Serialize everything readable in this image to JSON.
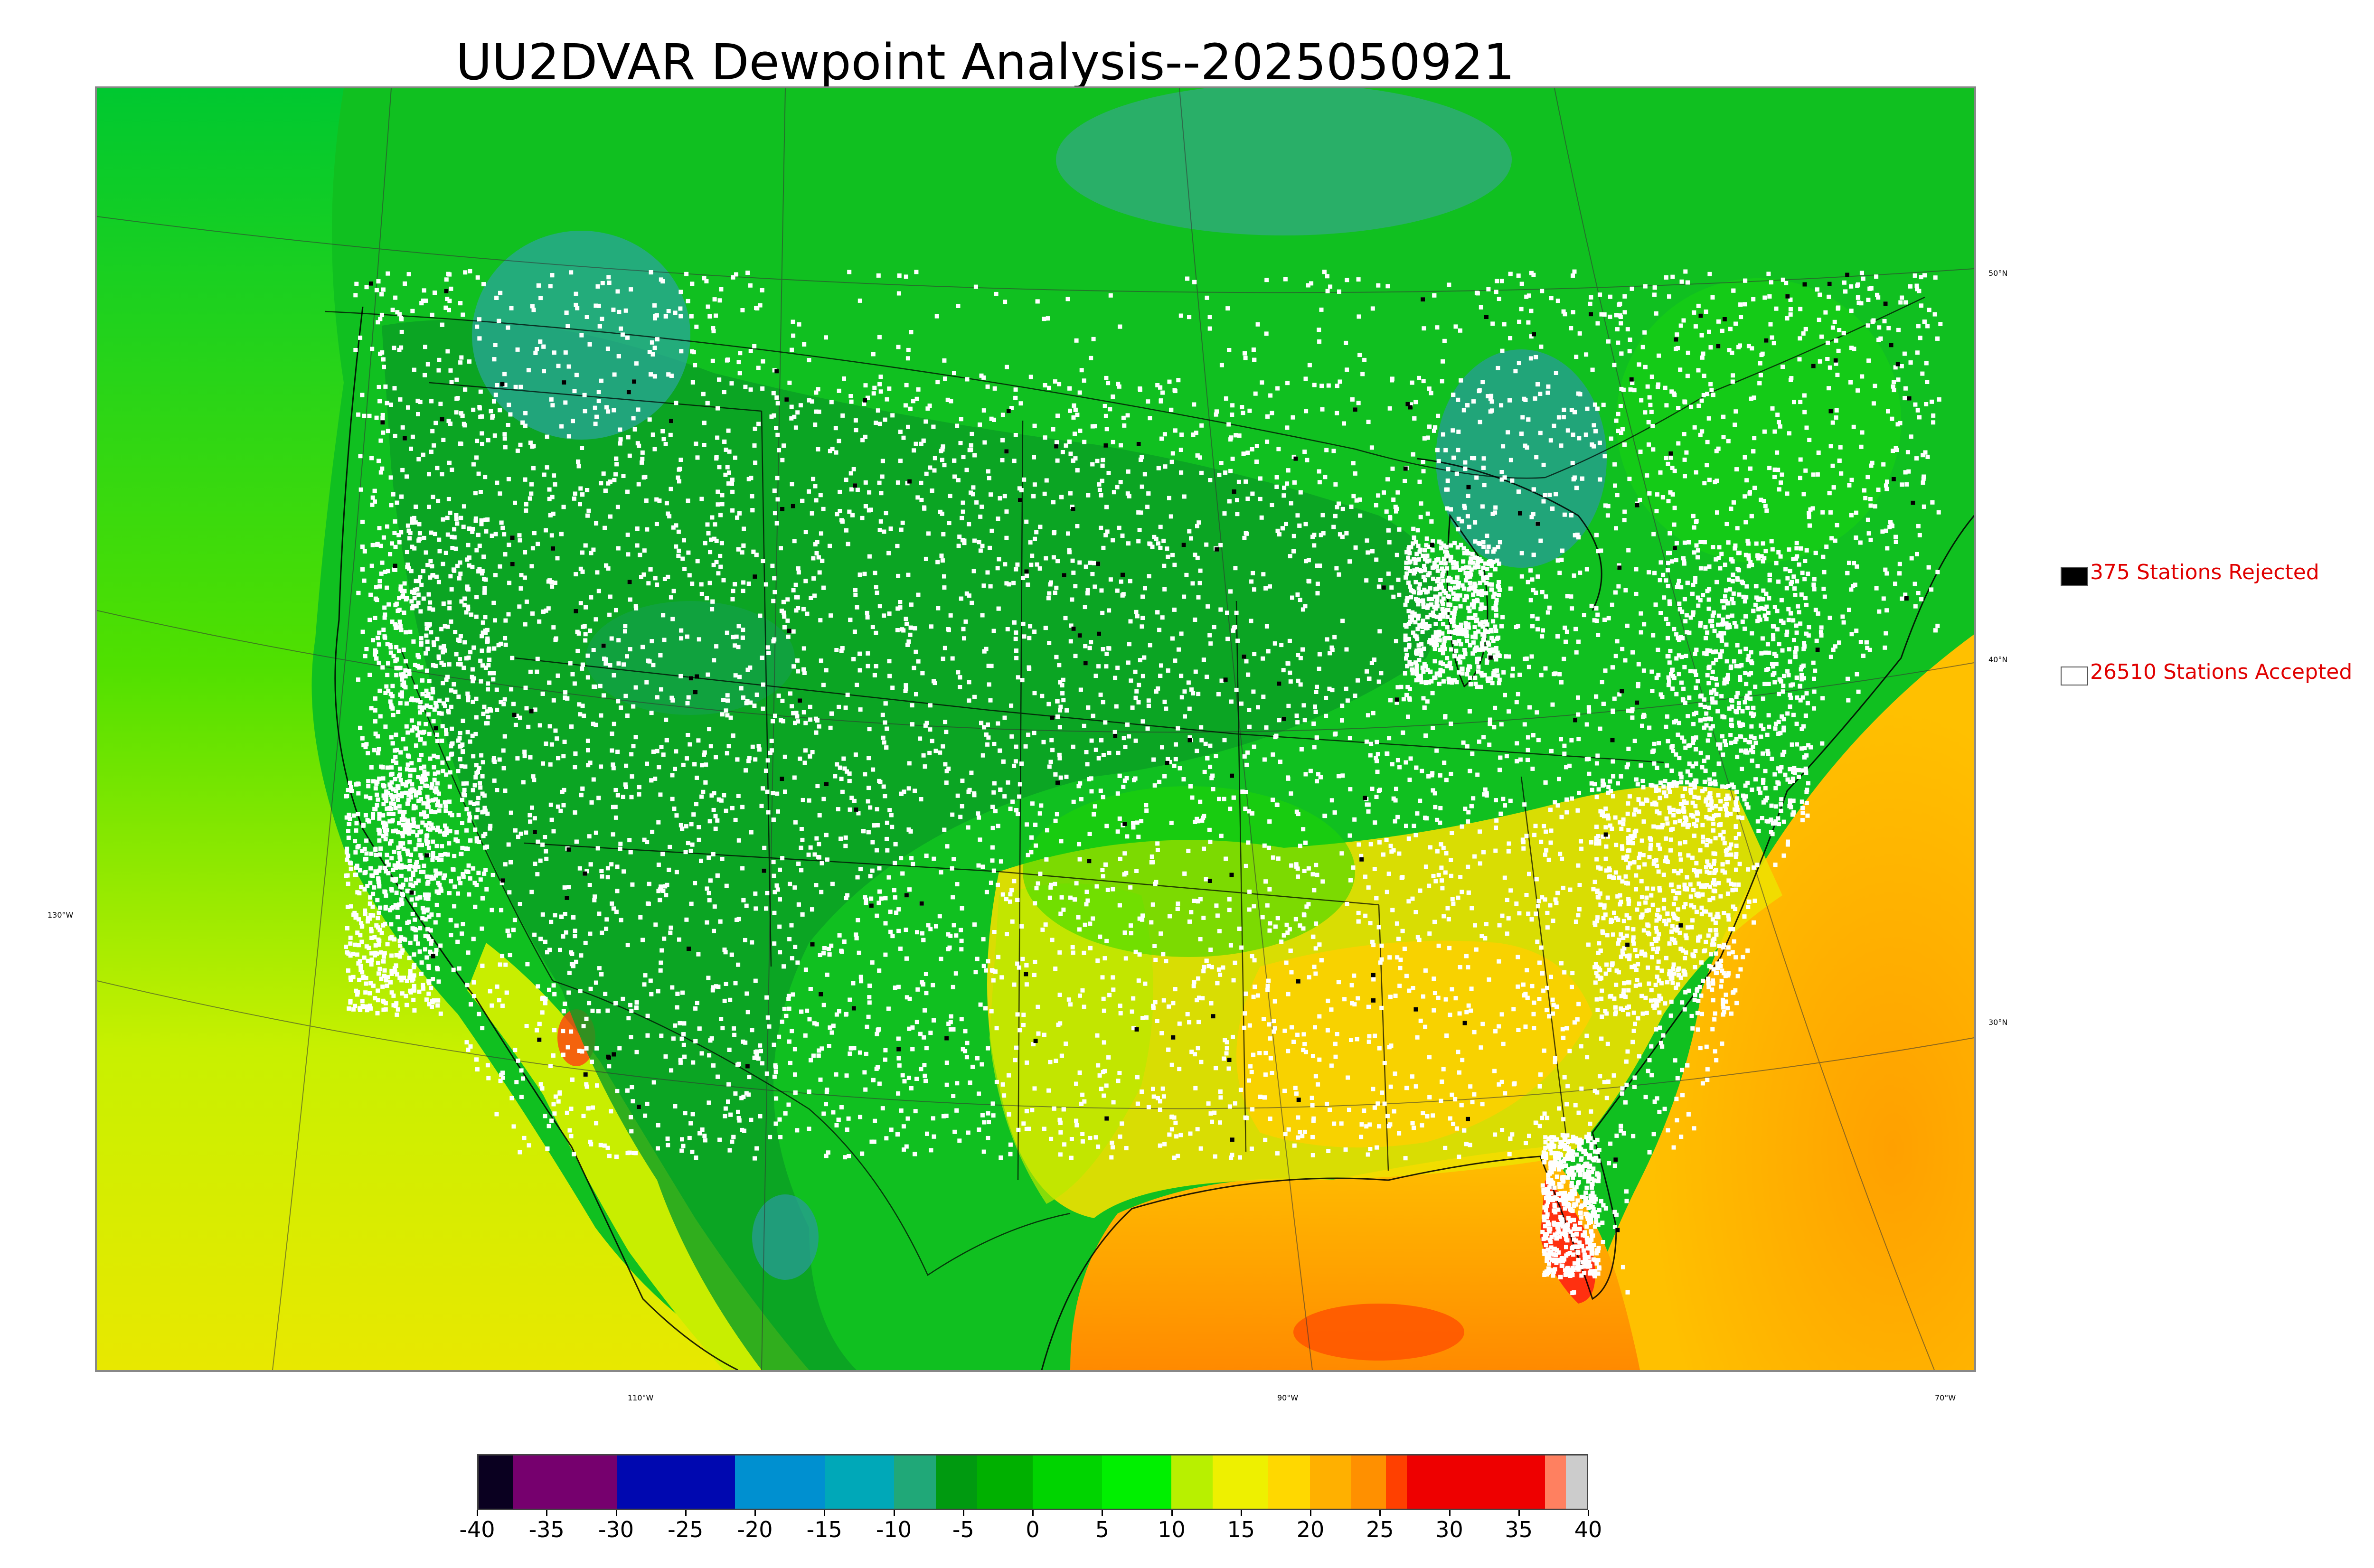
{
  "title": "UU2DVAR Dewpoint Analysis--2025050921",
  "map": {
    "latitude_labels": [
      "50°N",
      "40°N",
      "30°N"
    ],
    "longitude_labels": [
      "130°W",
      "110°W",
      "90°W",
      "70°W"
    ],
    "field": "dewpoint",
    "colors": {
      "ocean_west": "#c8f000",
      "ocean_gulf": "#ffaa00",
      "ocean_atlantic": "#ffb400",
      "land_green": "#10c010",
      "land_dark_green": "#089a20",
      "canada_north": "#00b830",
      "teal_cold": "#28a896",
      "southeast_yellow": "#ffd700",
      "red_hot": "#ff2010",
      "accepted_station": "#ffffff",
      "rejected_station": "#000000",
      "border_lines": "#000000"
    }
  },
  "legend": {
    "rejected": {
      "label": "375 Stations Rejected",
      "count": 375,
      "swatch_color": "#000000"
    },
    "accepted": {
      "label": "26510 Stations Accepted",
      "count": 26510,
      "swatch_color": "#ffffff"
    },
    "text_color": "#e00000"
  },
  "colorbar": {
    "min": -40,
    "max": 40,
    "tick_labels": [
      "-40",
      "-35",
      "-30",
      "-25",
      "-20",
      "-15",
      "-10",
      "-5",
      "0",
      "5",
      "10",
      "15",
      "20",
      "25",
      "30",
      "35",
      "40"
    ],
    "segments": [
      {
        "from": -40,
        "to": -37.5,
        "color": "#0a0020"
      },
      {
        "from": -37.5,
        "to": -30,
        "color": "#76006e"
      },
      {
        "from": -30,
        "to": -21.5,
        "color": "#0008b0"
      },
      {
        "from": -21.5,
        "to": -15,
        "color": "#0090d0"
      },
      {
        "from": -15,
        "to": -10,
        "color": "#00a8b8"
      },
      {
        "from": -10,
        "to": -7,
        "color": "#20a878"
      },
      {
        "from": -7,
        "to": -4,
        "color": "#009a10"
      },
      {
        "from": -4,
        "to": 0,
        "color": "#00b000"
      },
      {
        "from": 0,
        "to": 5,
        "color": "#00d400"
      },
      {
        "from": 5,
        "to": 10,
        "color": "#00f000"
      },
      {
        "from": 10,
        "to": 13,
        "color": "#b8f000"
      },
      {
        "from": 13,
        "to": 17,
        "color": "#eef000"
      },
      {
        "from": 17,
        "to": 20,
        "color": "#ffd800"
      },
      {
        "from": 20,
        "to": 23,
        "color": "#ffb000"
      },
      {
        "from": 23,
        "to": 25.5,
        "color": "#ff9000"
      },
      {
        "from": 25.5,
        "to": 27,
        "color": "#ff4000"
      },
      {
        "from": 27,
        "to": 37,
        "color": "#ee0000"
      },
      {
        "from": 37,
        "to": 38.5,
        "color": "#ff8060"
      },
      {
        "from": 38.5,
        "to": 40,
        "color": "#cccccc"
      }
    ]
  }
}
